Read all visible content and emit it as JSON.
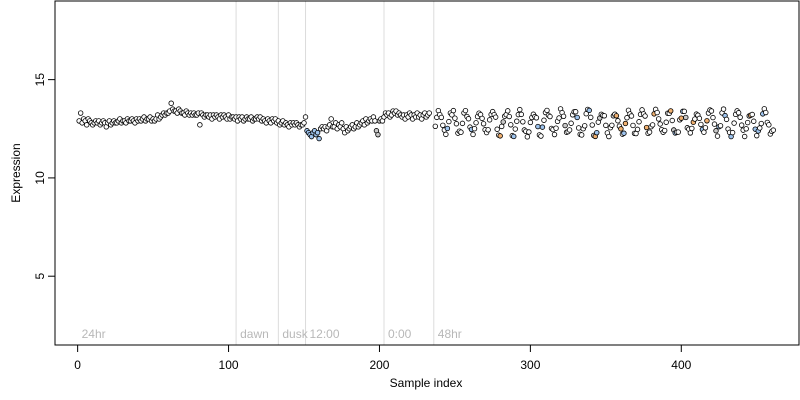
{
  "chart_data": {
    "type": "scatter",
    "title": "",
    "xlabel": "Sample index",
    "ylabel": "Expression",
    "xlim": [
      -15,
      478
    ],
    "ylim": [
      1.5,
      19
    ],
    "x_ticks": [
      0,
      100,
      200,
      300,
      400
    ],
    "y_ticks": [
      5,
      10,
      15
    ],
    "grid": false,
    "legend": "none",
    "colors": {
      "default": "#ffffff",
      "light": "#c8c8c8",
      "blue": "#9ec4ee",
      "orange": "#f0b070",
      "outline": "#000000",
      "phase_line": "#dcdcdc",
      "phase_text": "#b8b8b8"
    },
    "phases": [
      {
        "label": "24hr",
        "x": 0
      },
      {
        "label": "dawn",
        "x": 105
      },
      {
        "label": "dusk",
        "x": 133
      },
      {
        "label": "12:00",
        "x": 151
      },
      {
        "label": "0:00",
        "x": 203
      },
      {
        "label": "48hr",
        "x": 236
      }
    ],
    "series": [
      {
        "kind": "points",
        "x_start": 1,
        "y": [
          12.9,
          13.3,
          12.8,
          13.0,
          12.9,
          12.7,
          13.0,
          12.9,
          12.8,
          12.7,
          12.8,
          12.9,
          12.8,
          12.9,
          12.7,
          12.8,
          12.9,
          12.8,
          12.6,
          12.8,
          12.9,
          12.7,
          12.8,
          12.9,
          12.8,
          12.8,
          12.9,
          13.0,
          12.8,
          12.9,
          12.9,
          12.8,
          13.0,
          12.9,
          12.9,
          13.0,
          12.9,
          12.8,
          13.0,
          12.9,
          13.0,
          12.9,
          13.0,
          13.1,
          12.9,
          13.0,
          13.0,
          13.1,
          12.9,
          13.0,
          12.9,
          13.0,
          13.2,
          13.0,
          13.1,
          13.2,
          13.3,
          13.2,
          13.3,
          13.3,
          13.4,
          13.8,
          13.5,
          13.4,
          13.4,
          13.3,
          13.5,
          13.4,
          13.3,
          13.3,
          13.2,
          13.4,
          13.3,
          13.2,
          13.3,
          13.2,
          13.3,
          13.2,
          13.2,
          13.3,
          12.7,
          13.3,
          13.2,
          13.1,
          13.2,
          13.2,
          13.1,
          13.2,
          13.0,
          13.2,
          13.1,
          13.2,
          13.1,
          13.0,
          13.2,
          13.1,
          13.2,
          13.1,
          13.0,
          13.2,
          13.0,
          13.1,
          13.1,
          13.0,
          13.1,
          12.9,
          13.1,
          13.0,
          13.1,
          12.9,
          13.0,
          13.1,
          13.0,
          13.0,
          13.1,
          12.9,
          13.0,
          13.0,
          13.1,
          13.0,
          13.1,
          12.9,
          13.0,
          12.9,
          12.8,
          13.0,
          12.9,
          12.8,
          13.0,
          12.9,
          13.0,
          12.8,
          12.9,
          12.7,
          12.8,
          12.9,
          12.7,
          12.8,
          12.7,
          12.6,
          12.8,
          12.7,
          12.8,
          12.7,
          12.8,
          12.7,
          12.6,
          12.7,
          12.7,
          12.8,
          13.1,
          12.4,
          12.3,
          12.2,
          12.1,
          12.3,
          12.4,
          12.2,
          12.3,
          12.0,
          12.5,
          12.6,
          12.5,
          12.6,
          12.4,
          12.6,
          12.7,
          13.0,
          12.6,
          12.6,
          12.8,
          12.5,
          12.7,
          12.6,
          12.8,
          12.5,
          12.3,
          12.6,
          12.4,
          12.5,
          12.6,
          12.7,
          12.5,
          12.6,
          12.8,
          12.6,
          12.7,
          12.8,
          12.9,
          12.7,
          13.0,
          12.8,
          12.9,
          13.0,
          12.9,
          13.1,
          12.9,
          12.4,
          12.2,
          12.9,
          13.0,
          12.9,
          13.1,
          13.3,
          13.2,
          13.3,
          13.1,
          13.2,
          13.4,
          13.3,
          13.4,
          13.2,
          13.3,
          13.2,
          13.1,
          13.2,
          13.0,
          13.2,
          13.1,
          13.3,
          13.2,
          13.0,
          13.2,
          13.1,
          13.3,
          13.1,
          13.2,
          13.0,
          13.2,
          13.3,
          13.1,
          13.2,
          13.3
        ],
        "color_idx": [
          0,
          0,
          0,
          0,
          0,
          0,
          0,
          0,
          0,
          0,
          0,
          0,
          0,
          0,
          0,
          0,
          0,
          0,
          0,
          0,
          0,
          0,
          0,
          0,
          0,
          0,
          0,
          0,
          0,
          0,
          0,
          0,
          0,
          0,
          0,
          0,
          0,
          0,
          0,
          0,
          0,
          0,
          0,
          0,
          0,
          0,
          0,
          0,
          0,
          0,
          0,
          0,
          0,
          0,
          0,
          0,
          0,
          0,
          0,
          0,
          0,
          0,
          0,
          0,
          0,
          0,
          0,
          0,
          0,
          0,
          0,
          0,
          0,
          0,
          0,
          0,
          0,
          0,
          0,
          0,
          0,
          0,
          0,
          0,
          0,
          0,
          0,
          0,
          0,
          0,
          0,
          0,
          0,
          0,
          0,
          0,
          0,
          0,
          0,
          0,
          0,
          0,
          0,
          0,
          0,
          0,
          0,
          0,
          0,
          0,
          0,
          0,
          0,
          0,
          0,
          0,
          0,
          0,
          0,
          0,
          0,
          0,
          0,
          0,
          0,
          0,
          0,
          0,
          0,
          0,
          0,
          0,
          0,
          0,
          0,
          0,
          0,
          0,
          0,
          0,
          0,
          0,
          0,
          0,
          0,
          0,
          0,
          0,
          0,
          0,
          0,
          2,
          2,
          2,
          2,
          2,
          2,
          2,
          2,
          2,
          0,
          0,
          0,
          0,
          0,
          0,
          0,
          0,
          0,
          0,
          0,
          0,
          0,
          0,
          0,
          0,
          0,
          0,
          0,
          0,
          0,
          0,
          0,
          0,
          0,
          0,
          0,
          0,
          0,
          0,
          0,
          0,
          0,
          0,
          0,
          0,
          0,
          1,
          1,
          1,
          0,
          0,
          0,
          0,
          0,
          0,
          0,
          0,
          0,
          0,
          0,
          0,
          0,
          0,
          0,
          0,
          0,
          0,
          0,
          0,
          0,
          0,
          0,
          0,
          0,
          0,
          0,
          0,
          0,
          0,
          0,
          0,
          0,
          0,
          0
        ]
      },
      {
        "kind": "oscillating",
        "x_start": 237,
        "x_end": 461,
        "base": 12.8,
        "amplitude": 0.55,
        "period": 9,
        "phase_offset": 0,
        "y_min": 12.0,
        "y_max": 13.6
      }
    ]
  }
}
